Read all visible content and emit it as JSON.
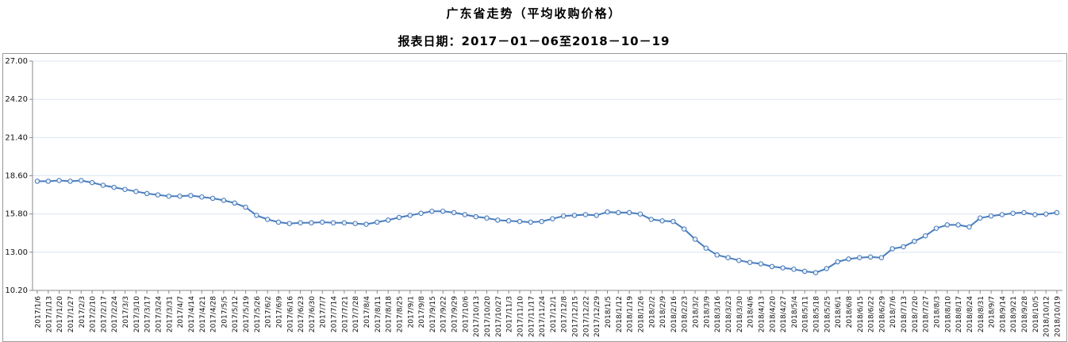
{
  "header": {
    "title": "广东省走势（平均收购价格）",
    "subtitle": "报表日期：2017－01－06至2018－10－19"
  },
  "chart_data": {
    "type": "line",
    "title": "广东省走势（平均收购价格）",
    "subtitle": "报表日期：2017－01－06至2018－10－19",
    "series_name": "平均收购价格",
    "line_color": "#4a7dbd",
    "marker": "hollow-circle",
    "grid": true,
    "legend_position": "none",
    "ylim": [
      10.2,
      27.0
    ],
    "yticks": [
      10.2,
      13.0,
      15.8,
      18.6,
      21.4,
      24.2,
      27.0
    ],
    "categories": [
      "2017/1/6",
      "2017/1/13",
      "2017/1/20",
      "2017/1/27",
      "2017/2/3",
      "2017/2/10",
      "2017/2/17",
      "2017/2/24",
      "2017/3/3",
      "2017/3/10",
      "2017/3/17",
      "2017/3/24",
      "2017/3/31",
      "2017/4/7",
      "2017/4/14",
      "2017/4/21",
      "2017/4/28",
      "2017/5/5",
      "2017/5/12",
      "2017/5/19",
      "2017/5/26",
      "2017/6/2",
      "2017/6/9",
      "2017/6/16",
      "2017/6/23",
      "2017/6/30",
      "2017/7/7",
      "2017/7/14",
      "2017/7/21",
      "2017/7/28",
      "2017/8/4",
      "2017/8/11",
      "2017/8/18",
      "2017/8/25",
      "2017/9/1",
      "2017/9/8",
      "2017/9/15",
      "2017/9/22",
      "2017/9/29",
      "2017/10/6",
      "2017/10/13",
      "2017/10/20",
      "2017/10/27",
      "2017/11/3",
      "2017/11/10",
      "2017/11/17",
      "2017/11/24",
      "2017/12/1",
      "2017/12/8",
      "2017/12/15",
      "2017/12/22",
      "2017/12/29",
      "2018/1/5",
      "2018/1/12",
      "2018/1/19",
      "2018/1/26",
      "2018/2/2",
      "2018/2/9",
      "2018/2/16",
      "2018/2/23",
      "2018/3/2",
      "2018/3/9",
      "2018/3/16",
      "2018/3/23",
      "2018/3/30",
      "2018/4/6",
      "2018/4/13",
      "2018/4/20",
      "2018/4/27",
      "2018/5/4",
      "2018/5/11",
      "2018/5/18",
      "2018/5/25",
      "2018/6/1",
      "2018/6/8",
      "2018/6/15",
      "2018/6/22",
      "2018/6/29",
      "2018/7/6",
      "2018/7/13",
      "2018/7/20",
      "2018/7/27",
      "2018/8/3",
      "2018/8/10",
      "2018/8/17",
      "2018/8/24",
      "2018/8/31",
      "2018/9/7",
      "2018/9/14",
      "2018/9/21",
      "2018/9/28",
      "2018/10/5",
      "2018/10/12",
      "2018/10/19"
    ],
    "series": [
      {
        "name": "平均收购价格",
        "values": [
          18.2,
          18.2,
          18.25,
          18.2,
          18.25,
          18.1,
          17.9,
          17.75,
          17.6,
          17.45,
          17.3,
          17.2,
          17.1,
          17.1,
          17.15,
          17.05,
          16.95,
          16.8,
          16.6,
          16.3,
          15.7,
          15.4,
          15.2,
          15.1,
          15.15,
          15.15,
          15.2,
          15.15,
          15.15,
          15.1,
          15.05,
          15.2,
          15.35,
          15.55,
          15.7,
          15.85,
          16.0,
          16.0,
          15.9,
          15.75,
          15.6,
          15.5,
          15.35,
          15.3,
          15.25,
          15.2,
          15.25,
          15.45,
          15.65,
          15.7,
          15.75,
          15.7,
          15.95,
          15.9,
          15.9,
          15.8,
          15.4,
          15.3,
          15.25,
          14.7,
          13.95,
          13.3,
          12.8,
          12.6,
          12.4,
          12.25,
          12.15,
          11.95,
          11.85,
          11.75,
          11.6,
          11.5,
          11.8,
          12.3,
          12.5,
          12.6,
          12.65,
          12.6,
          13.25,
          13.4,
          13.8,
          14.2,
          14.75,
          15.0,
          15.0,
          14.85,
          15.5,
          15.65,
          15.75,
          15.85,
          15.9,
          15.75,
          15.8,
          15.9
        ]
      }
    ]
  }
}
